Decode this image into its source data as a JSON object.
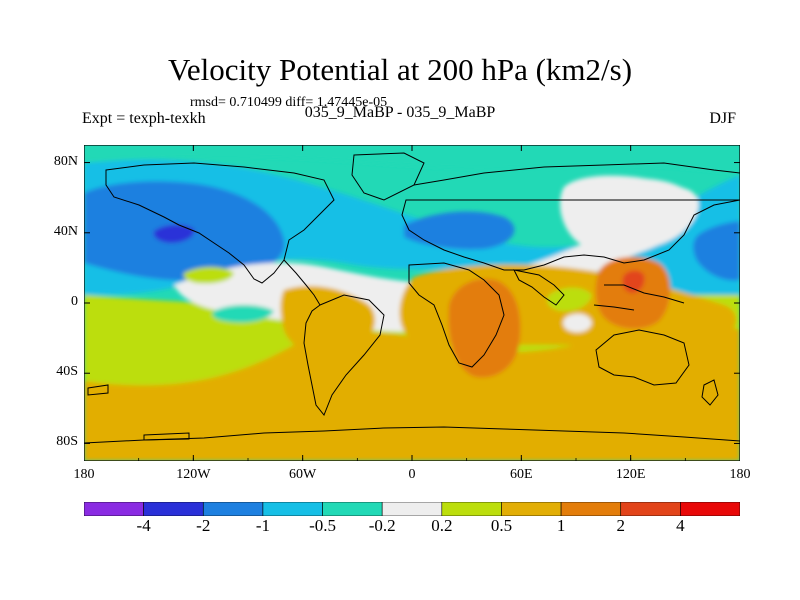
{
  "figure": {
    "title": "Velocity Potential at 200 hPa (km2/s)",
    "stats": "rmsd= 0.710499 diff= 1.47445e-05",
    "experiment": "Expt = texph-texkh",
    "subtitle": "035_9_MaBP - 035_9_MaBP",
    "season": "DJF"
  },
  "chart_data": {
    "type": "heatmap",
    "map_type": "global lat-lon contour (filled)",
    "title": "Velocity Potential at 200 hPa (km2/s)",
    "units": "km2/s",
    "x_ticks": [
      "180",
      "120W",
      "60W",
      "0",
      "60E",
      "120E",
      "180"
    ],
    "y_ticks": [
      "80N",
      "40N",
      "0",
      "40S",
      "80S"
    ],
    "x_range": [
      -180,
      180
    ],
    "y_range": [
      -90,
      90
    ],
    "contour_levels": [
      "-4",
      "-2",
      "-1",
      "-0.5",
      "-0.2",
      "0.2",
      "0.5",
      "1",
      "2",
      "4"
    ],
    "colorbar_colors": [
      "#8a2be2",
      "#2a30d8",
      "#1e80e0",
      "#16bfe6",
      "#22d9b6",
      "#eeeeee",
      "#bcde0c",
      "#e2ae06",
      "#e37d0a",
      "#e2441a",
      "#e80808"
    ],
    "features": [
      {
        "description": "minimum over North Pacific",
        "lon": -145,
        "lat": 35,
        "value_class": "< -2"
      },
      {
        "description": "maximum over Indian Ocean / East Africa",
        "lon": 45,
        "lat": -20,
        "value_class": "1 to 2"
      },
      {
        "description": "maximum over Maritime Continent",
        "lon": 122,
        "lat": 5,
        "value_class": "2 to 4"
      }
    ]
  }
}
